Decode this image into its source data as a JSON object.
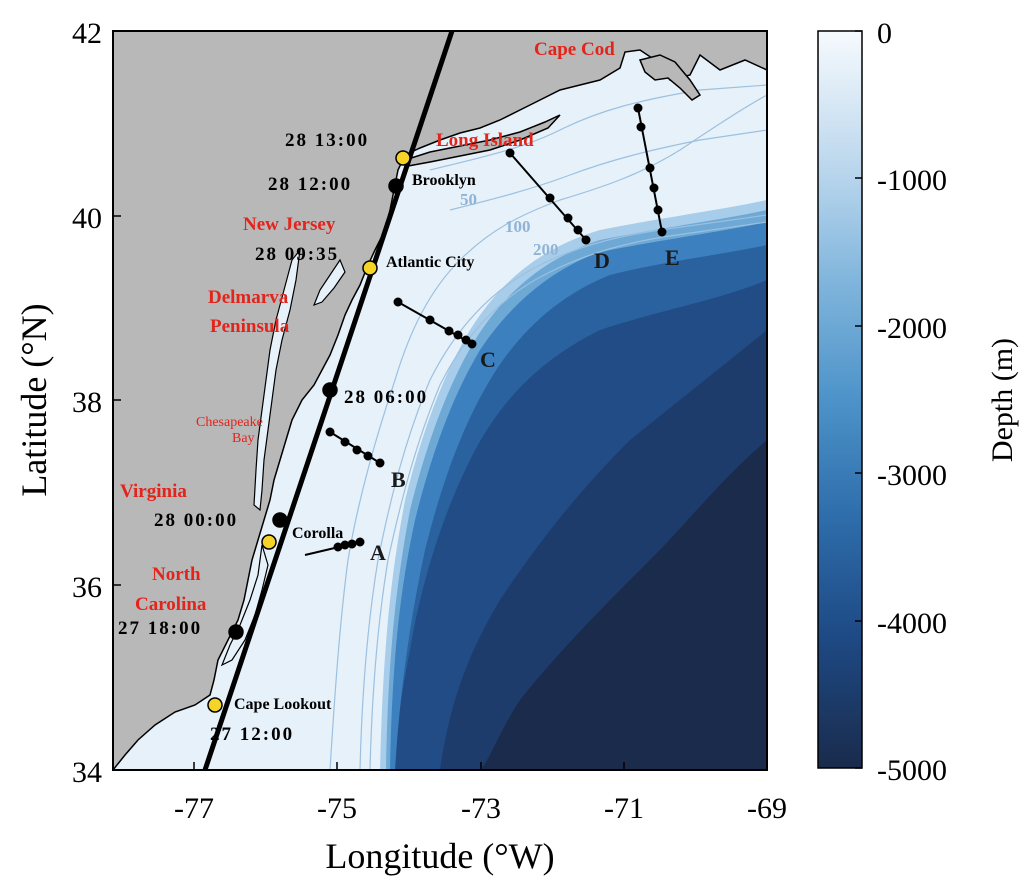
{
  "axes": {
    "xlabel": "Longitude (°W)",
    "ylabel": "Latitude (°N)",
    "xlim": [
      -78.2,
      -69
    ],
    "ylim": [
      34,
      42
    ],
    "xticks": [
      "-77",
      "-75",
      "-73",
      "-71",
      "-69"
    ],
    "yticks": [
      "34",
      "36",
      "38",
      "40",
      "42"
    ]
  },
  "colorbar": {
    "label": "Depth (m)",
    "ticks": [
      "0",
      "-1000",
      "-2000",
      "-3000",
      "-4000",
      "-5000"
    ],
    "range": [
      0,
      -5000
    ],
    "colors": [
      "#f2f8fd",
      "#cbe1f1",
      "#8fc0e0",
      "#4f97cb",
      "#2e6fad",
      "#1c4f8e",
      "#1a3a68",
      "#1a2b4c"
    ]
  },
  "colors": {
    "land": "#b8b8b8",
    "shelf": "#e6f1fa",
    "track": "#000000",
    "point_yellow": "#f5d327",
    "region_text": "#e3241b",
    "isobath": "#8fb4d6"
  },
  "regions": [
    {
      "id": "cape-cod",
      "text": "Cape Cod"
    },
    {
      "id": "long-island",
      "text": "Long Island"
    },
    {
      "id": "new-jersey",
      "text": "New Jersey"
    },
    {
      "id": "delmarva",
      "text": "Delmarva"
    },
    {
      "id": "peninsula",
      "text": "Peninsula"
    },
    {
      "id": "chesapeake",
      "text": "Chesapeake"
    },
    {
      "id": "bay",
      "text": "Bay"
    },
    {
      "id": "virginia",
      "text": "Virginia"
    },
    {
      "id": "north",
      "text": "North"
    },
    {
      "id": "carolina",
      "text": "Carolina"
    }
  ],
  "times": [
    "28 13:00",
    "28 12:00",
    "28 09:35",
    "28 06:00",
    "28 00:00",
    "27 18:00",
    "27 12:00"
  ],
  "cities": [
    "Brooklyn",
    "Atlantic City",
    "Corolla",
    "Cape Lookout"
  ],
  "transects": [
    "A",
    "B",
    "C",
    "D",
    "E"
  ],
  "isobaths": [
    "50",
    "100",
    "200"
  ],
  "track_points": [
    {
      "time": "27 12:00",
      "lon": -76.65,
      "lat": 34.72,
      "color": "yellow"
    },
    {
      "time": "27 18:00",
      "lon": -76.3,
      "lat": 35.55,
      "color": "black"
    },
    {
      "time": "",
      "lon": -75.83,
      "lat": 36.48,
      "color": "yellow"
    },
    {
      "time": "28 00:00",
      "lon": -75.72,
      "lat": 36.72,
      "color": "black"
    },
    {
      "time": "28 06:00",
      "lon": -75.07,
      "lat": 38.12,
      "color": "black"
    },
    {
      "time": "28 09:35",
      "lon": -74.42,
      "lat": 39.42,
      "color": "yellow"
    },
    {
      "time": "28 12:00",
      "lon": -74.07,
      "lat": 40.32,
      "color": "black"
    },
    {
      "time": "28 13:00",
      "lon": -73.98,
      "lat": 40.62,
      "color": "yellow"
    }
  ]
}
